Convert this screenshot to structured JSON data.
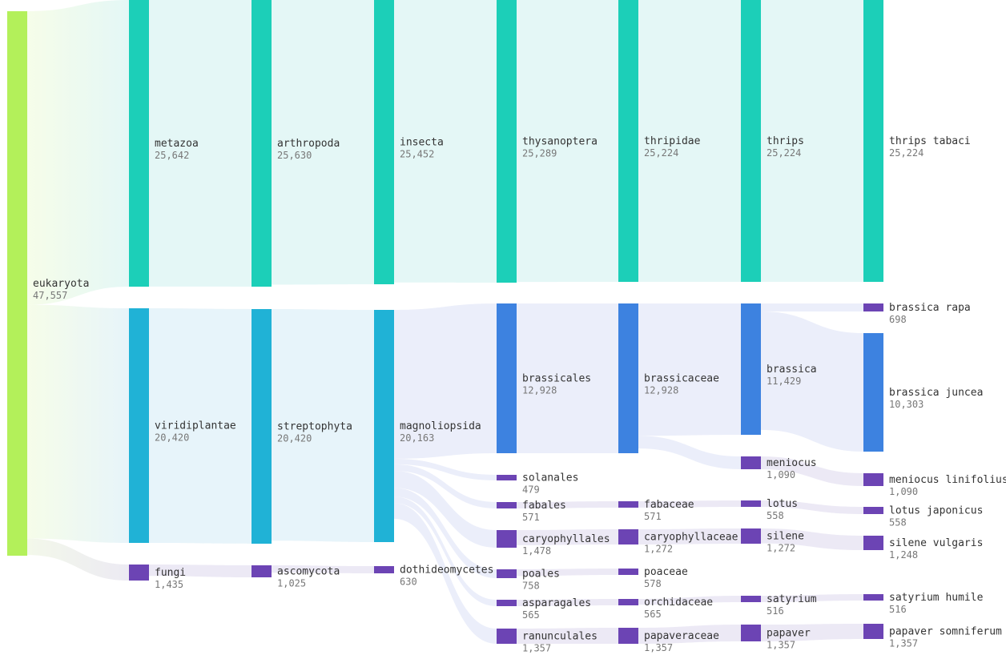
{
  "colors": {
    "root": "#b3f05a",
    "metazoa": "#1ccfb8",
    "plants": "#20b2d6",
    "brassica_group": "#3d82e0",
    "purple": "#6c44b4",
    "link_teal": "#e4f7f6",
    "link_blue": "#e7f4fa",
    "link_indigo": "#ebeefa",
    "link_purple": "#ece9f5",
    "link_fungi": "#eceaf3"
  },
  "chart_data": {
    "type": "sankey",
    "nodes": [
      {
        "id": "eukaryota",
        "name": "eukaryota",
        "value": 47557,
        "value_label": "47,557",
        "level": 0,
        "color": "root"
      },
      {
        "id": "metazoa",
        "name": "metazoa",
        "value": 25642,
        "value_label": "25,642",
        "level": 1,
        "color": "metazoa"
      },
      {
        "id": "viridiplantae",
        "name": "viridiplantae",
        "value": 20420,
        "value_label": "20,420",
        "level": 1,
        "color": "plants"
      },
      {
        "id": "fungi",
        "name": "fungi",
        "value": 1435,
        "value_label": "1,435",
        "level": 1,
        "color": "purple"
      },
      {
        "id": "arthropoda",
        "name": "arthropoda",
        "value": 25630,
        "value_label": "25,630",
        "level": 2,
        "color": "metazoa"
      },
      {
        "id": "streptophyta",
        "name": "streptophyta",
        "value": 20420,
        "value_label": "20,420",
        "level": 2,
        "color": "plants"
      },
      {
        "id": "ascomycota",
        "name": "ascomycota",
        "value": 1025,
        "value_label": "1,025",
        "level": 2,
        "color": "purple"
      },
      {
        "id": "insecta",
        "name": "insecta",
        "value": 25452,
        "value_label": "25,452",
        "level": 3,
        "color": "metazoa"
      },
      {
        "id": "magnoliopsida",
        "name": "magnoliopsida",
        "value": 20163,
        "value_label": "20,163",
        "level": 3,
        "color": "plants"
      },
      {
        "id": "dothideomycetes",
        "name": "dothideomycetes",
        "value": 630,
        "value_label": "630",
        "level": 3,
        "color": "purple"
      },
      {
        "id": "thysanoptera",
        "name": "thysanoptera",
        "value": 25289,
        "value_label": "25,289",
        "level": 4,
        "color": "metazoa"
      },
      {
        "id": "brassicales",
        "name": "brassicales",
        "value": 12928,
        "value_label": "12,928",
        "level": 4,
        "color": "brassica_group"
      },
      {
        "id": "solanales",
        "name": "solanales",
        "value": 479,
        "value_label": "479",
        "level": 4,
        "color": "purple"
      },
      {
        "id": "fabales",
        "name": "fabales",
        "value": 571,
        "value_label": "571",
        "level": 4,
        "color": "purple"
      },
      {
        "id": "caryophyllales",
        "name": "caryophyllales",
        "value": 1478,
        "value_label": "1,478",
        "level": 4,
        "color": "purple"
      },
      {
        "id": "poales",
        "name": "poales",
        "value": 758,
        "value_label": "758",
        "level": 4,
        "color": "purple"
      },
      {
        "id": "asparagales",
        "name": "asparagales",
        "value": 565,
        "value_label": "565",
        "level": 4,
        "color": "purple"
      },
      {
        "id": "ranunculales",
        "name": "ranunculales",
        "value": 1357,
        "value_label": "1,357",
        "level": 4,
        "color": "purple"
      },
      {
        "id": "thripidae",
        "name": "thripidae",
        "value": 25224,
        "value_label": "25,224",
        "level": 5,
        "color": "metazoa"
      },
      {
        "id": "brassicaceae",
        "name": "brassicaceae",
        "value": 12928,
        "value_label": "12,928",
        "level": 5,
        "color": "brassica_group"
      },
      {
        "id": "fabaceae",
        "name": "fabaceae",
        "value": 571,
        "value_label": "571",
        "level": 5,
        "color": "purple"
      },
      {
        "id": "caryophyllaceae",
        "name": "caryophyllaceae",
        "value": 1272,
        "value_label": "1,272",
        "level": 5,
        "color": "purple"
      },
      {
        "id": "poaceae",
        "name": "poaceae",
        "value": 578,
        "value_label": "578",
        "level": 5,
        "color": "purple"
      },
      {
        "id": "orchidaceae",
        "name": "orchidaceae",
        "value": 565,
        "value_label": "565",
        "level": 5,
        "color": "purple"
      },
      {
        "id": "papaveraceae",
        "name": "papaveraceae",
        "value": 1357,
        "value_label": "1,357",
        "level": 5,
        "color": "purple"
      },
      {
        "id": "thrips",
        "name": "thrips",
        "value": 25224,
        "value_label": "25,224",
        "level": 6,
        "color": "metazoa"
      },
      {
        "id": "brassica",
        "name": "brassica",
        "value": 11429,
        "value_label": "11,429",
        "level": 6,
        "color": "brassica_group"
      },
      {
        "id": "meniocus",
        "name": "meniocus",
        "value": 1090,
        "value_label": "1,090",
        "level": 6,
        "color": "purple"
      },
      {
        "id": "lotus",
        "name": "lotus",
        "value": 558,
        "value_label": "558",
        "level": 6,
        "color": "purple"
      },
      {
        "id": "silene",
        "name": "silene",
        "value": 1272,
        "value_label": "1,272",
        "level": 6,
        "color": "purple"
      },
      {
        "id": "satyrium",
        "name": "satyrium",
        "value": 516,
        "value_label": "516",
        "level": 6,
        "color": "purple"
      },
      {
        "id": "papaver",
        "name": "papaver",
        "value": 1357,
        "value_label": "1,357",
        "level": 6,
        "color": "purple"
      },
      {
        "id": "thrips_tabaci",
        "name": "thrips tabaci",
        "value": 25224,
        "value_label": "25,224",
        "level": 7,
        "color": "metazoa"
      },
      {
        "id": "brassica_rapa",
        "name": "brassica rapa",
        "value": 698,
        "value_label": "698",
        "level": 7,
        "color": "purple"
      },
      {
        "id": "brassica_juncea",
        "name": "brassica juncea",
        "value": 10303,
        "value_label": "10,303",
        "level": 7,
        "color": "brassica_group"
      },
      {
        "id": "meniocus_linifolius",
        "name": "meniocus linifolius",
        "value": 1090,
        "value_label": "1,090",
        "level": 7,
        "color": "purple"
      },
      {
        "id": "lotus_japonicus",
        "name": "lotus japonicus",
        "value": 558,
        "value_label": "558",
        "level": 7,
        "color": "purple"
      },
      {
        "id": "silene_vulgaris",
        "name": "silene vulgaris",
        "value": 1248,
        "value_label": "1,248",
        "level": 7,
        "color": "purple"
      },
      {
        "id": "satyrium_humile",
        "name": "satyrium humile",
        "value": 516,
        "value_label": "516",
        "level": 7,
        "color": "purple"
      },
      {
        "id": "papaver_somniferum",
        "name": "papaver somniferum",
        "value": 1357,
        "value_label": "1,357",
        "level": 7,
        "color": "purple"
      }
    ],
    "links": [
      {
        "source": "eukaryota",
        "target": "metazoa",
        "value": 25642
      },
      {
        "source": "eukaryota",
        "target": "viridiplantae",
        "value": 20420
      },
      {
        "source": "eukaryota",
        "target": "fungi",
        "value": 1435
      },
      {
        "source": "metazoa",
        "target": "arthropoda",
        "value": 25630
      },
      {
        "source": "viridiplantae",
        "target": "streptophyta",
        "value": 20420
      },
      {
        "source": "fungi",
        "target": "ascomycota",
        "value": 1025
      },
      {
        "source": "arthropoda",
        "target": "insecta",
        "value": 25452
      },
      {
        "source": "streptophyta",
        "target": "magnoliopsida",
        "value": 20163
      },
      {
        "source": "ascomycota",
        "target": "dothideomycetes",
        "value": 630
      },
      {
        "source": "insecta",
        "target": "thysanoptera",
        "value": 25289
      },
      {
        "source": "magnoliopsida",
        "target": "brassicales",
        "value": 12928
      },
      {
        "source": "magnoliopsida",
        "target": "solanales",
        "value": 479
      },
      {
        "source": "magnoliopsida",
        "target": "fabales",
        "value": 571
      },
      {
        "source": "magnoliopsida",
        "target": "caryophyllales",
        "value": 1478
      },
      {
        "source": "magnoliopsida",
        "target": "poales",
        "value": 758
      },
      {
        "source": "magnoliopsida",
        "target": "asparagales",
        "value": 565
      },
      {
        "source": "magnoliopsida",
        "target": "ranunculales",
        "value": 1357
      },
      {
        "source": "thysanoptera",
        "target": "thripidae",
        "value": 25224
      },
      {
        "source": "brassicales",
        "target": "brassicaceae",
        "value": 12928
      },
      {
        "source": "fabales",
        "target": "fabaceae",
        "value": 571
      },
      {
        "source": "caryophyllales",
        "target": "caryophyllaceae",
        "value": 1272
      },
      {
        "source": "poales",
        "target": "poaceae",
        "value": 578
      },
      {
        "source": "asparagales",
        "target": "orchidaceae",
        "value": 565
      },
      {
        "source": "ranunculales",
        "target": "papaveraceae",
        "value": 1357
      },
      {
        "source": "thripidae",
        "target": "thrips",
        "value": 25224
      },
      {
        "source": "brassicaceae",
        "target": "brassica",
        "value": 11429
      },
      {
        "source": "brassicaceae",
        "target": "meniocus",
        "value": 1090
      },
      {
        "source": "fabaceae",
        "target": "lotus",
        "value": 558
      },
      {
        "source": "caryophyllaceae",
        "target": "silene",
        "value": 1272
      },
      {
        "source": "orchidaceae",
        "target": "satyrium",
        "value": 516
      },
      {
        "source": "papaveraceae",
        "target": "papaver",
        "value": 1357
      },
      {
        "source": "thrips",
        "target": "thrips_tabaci",
        "value": 25224
      },
      {
        "source": "brassica",
        "target": "brassica_rapa",
        "value": 698
      },
      {
        "source": "brassica",
        "target": "brassica_juncea",
        "value": 10303
      },
      {
        "source": "meniocus",
        "target": "meniocus_linifolius",
        "value": 1090
      },
      {
        "source": "lotus",
        "target": "lotus_japonicus",
        "value": 558
      },
      {
        "source": "silene",
        "target": "silene_vulgaris",
        "value": 1248
      },
      {
        "source": "satyrium",
        "target": "satyrium_humile",
        "value": 516
      },
      {
        "source": "papaver",
        "target": "papaver_somniferum",
        "value": 1357
      }
    ]
  }
}
